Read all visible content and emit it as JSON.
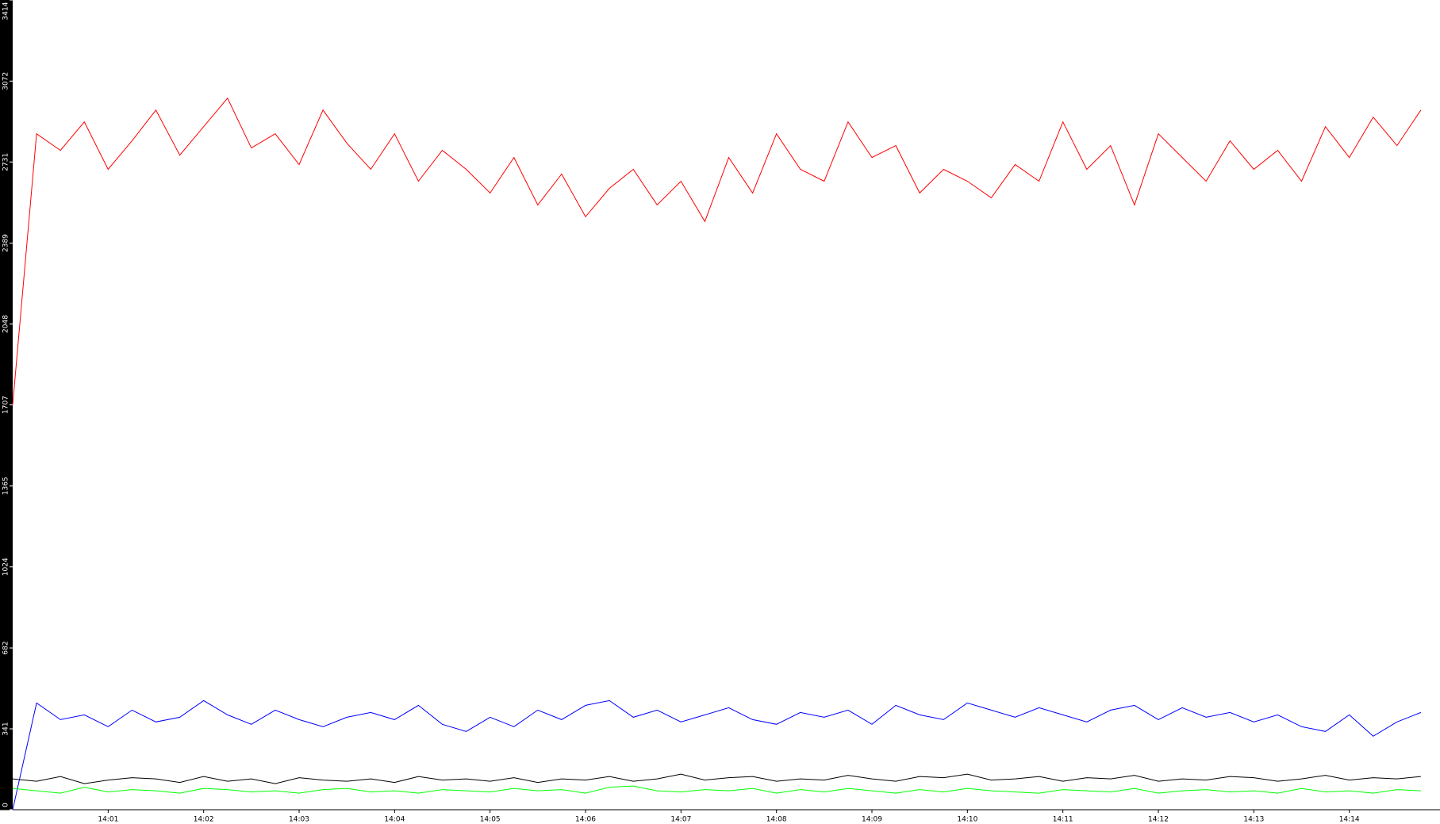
{
  "chart_data": {
    "type": "line",
    "x": [
      0,
      0.25,
      0.5,
      0.75,
      1,
      1.25,
      1.5,
      1.75,
      2,
      2.25,
      2.5,
      2.75,
      3,
      3.25,
      3.5,
      3.75,
      4,
      4.25,
      4.5,
      4.75,
      5,
      5.25,
      5.5,
      5.75,
      6,
      6.25,
      6.5,
      6.75,
      7,
      7.25,
      7.5,
      7.75,
      8,
      8.25,
      8.5,
      8.75,
      9,
      9.25,
      9.5,
      9.75,
      10,
      10.25,
      10.5,
      10.75,
      11,
      11.25,
      11.5,
      11.75,
      12,
      12.25,
      12.5,
      12.75,
      13,
      13.25,
      13.5,
      13.75,
      14,
      14.25,
      14.5,
      14.75
    ],
    "series": [
      {
        "name": "red",
        "color": "#ff0000",
        "values": [
          1707,
          2850,
          2780,
          2900,
          2700,
          2820,
          2950,
          2760,
          2880,
          3000,
          2790,
          2850,
          2720,
          2950,
          2810,
          2700,
          2850,
          2650,
          2780,
          2700,
          2600,
          2750,
          2550,
          2680,
          2500,
          2620,
          2700,
          2550,
          2650,
          2480,
          2750,
          2600,
          2850,
          2700,
          2650,
          2900,
          2750,
          2800,
          2600,
          2700,
          2650,
          2580,
          2720,
          2650,
          2900,
          2700,
          2800,
          2550,
          2850,
          2750,
          2650,
          2820,
          2700,
          2780,
          2650,
          2880,
          2750,
          2920,
          2800,
          2950
        ]
      },
      {
        "name": "blue",
        "color": "#0000ff",
        "values": [
          0,
          450,
          380,
          400,
          350,
          420,
          370,
          390,
          460,
          400,
          360,
          420,
          380,
          350,
          390,
          410,
          380,
          440,
          360,
          330,
          390,
          350,
          420,
          380,
          440,
          460,
          390,
          420,
          370,
          400,
          430,
          380,
          360,
          410,
          390,
          420,
          360,
          440,
          400,
          380,
          450,
          420,
          390,
          430,
          400,
          370,
          420,
          440,
          380,
          430,
          390,
          410,
          370,
          400,
          350,
          330,
          400,
          310,
          370,
          410
        ]
      },
      {
        "name": "black",
        "color": "#000000",
        "values": [
          130,
          120,
          140,
          110,
          125,
          135,
          130,
          115,
          140,
          120,
          130,
          110,
          135,
          125,
          120,
          130,
          115,
          140,
          125,
          130,
          120,
          135,
          115,
          130,
          125,
          140,
          120,
          130,
          150,
          125,
          135,
          140,
          120,
          130,
          125,
          145,
          130,
          120,
          140,
          135,
          150,
          125,
          130,
          140,
          120,
          135,
          130,
          145,
          120,
          130,
          125,
          140,
          135,
          120,
          130,
          145,
          125,
          135,
          130,
          140
        ]
      },
      {
        "name": "green",
        "color": "#00ff00",
        "values": [
          90,
          80,
          70,
          95,
          75,
          85,
          80,
          70,
          90,
          85,
          75,
          80,
          70,
          85,
          90,
          75,
          80,
          70,
          85,
          80,
          75,
          90,
          80,
          85,
          70,
          95,
          100,
          80,
          75,
          85,
          80,
          90,
          70,
          85,
          75,
          90,
          80,
          70,
          85,
          75,
          90,
          80,
          75,
          70,
          85,
          80,
          75,
          90,
          70,
          80,
          85,
          75,
          80,
          70,
          90,
          75,
          80,
          70,
          85,
          80
        ]
      }
    ],
    "xlim": [
      0,
      14.95
    ],
    "xticks": [
      {
        "value": 1,
        "label": "14:01"
      },
      {
        "value": 2,
        "label": "14:02"
      },
      {
        "value": 3,
        "label": "14:03"
      },
      {
        "value": 4,
        "label": "14:04"
      },
      {
        "value": 5,
        "label": "14:05"
      },
      {
        "value": 6,
        "label": "14:06"
      },
      {
        "value": 7,
        "label": "14:07"
      },
      {
        "value": 8,
        "label": "14:08"
      },
      {
        "value": 9,
        "label": "14:09"
      },
      {
        "value": 10,
        "label": "14:10"
      },
      {
        "value": 11,
        "label": "14:11"
      },
      {
        "value": 12,
        "label": "14:12"
      },
      {
        "value": 13,
        "label": "14:13"
      },
      {
        "value": 14,
        "label": "14:14"
      }
    ],
    "ylim": [
      0,
      3414
    ],
    "yticks": [
      0,
      341,
      682,
      1024,
      1365,
      1707,
      2048,
      2389,
      2731,
      3072,
      3414
    ]
  }
}
